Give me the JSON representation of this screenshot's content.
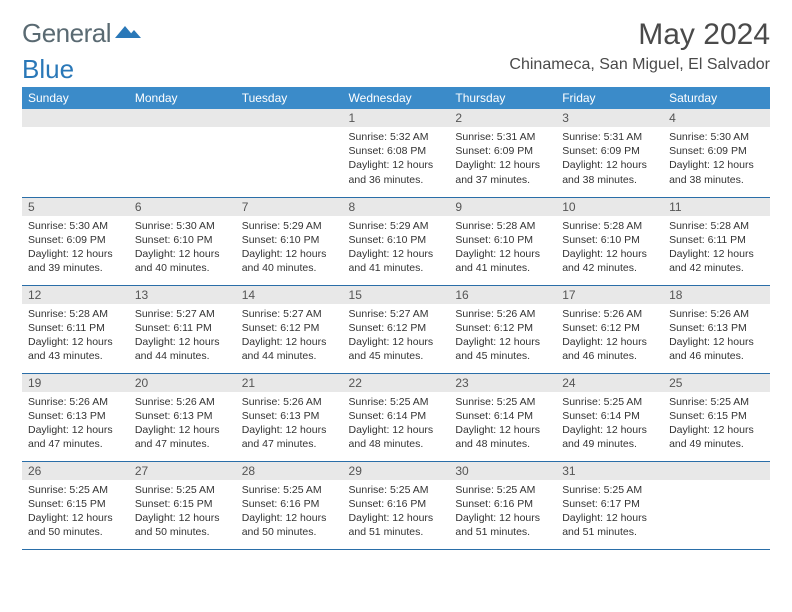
{
  "logo": {
    "word1": "General",
    "word2": "Blue",
    "color1": "#5a6a72",
    "color2": "#2a78b8",
    "shape_color": "#2a78b8"
  },
  "title": "May 2024",
  "location": "Chinameca, San Miguel, El Salvador",
  "colors": {
    "header_bg": "#3b8bc9",
    "header_text": "#ffffff",
    "daynum_bg": "#e8e8e8",
    "border": "#2a6ea8",
    "text": "#333333"
  },
  "daynames": [
    "Sunday",
    "Monday",
    "Tuesday",
    "Wednesday",
    "Thursday",
    "Friday",
    "Saturday"
  ],
  "weeks": [
    [
      null,
      null,
      null,
      {
        "n": 1,
        "sr": "5:32 AM",
        "ss": "6:08 PM",
        "dl": "12 hours and 36 minutes."
      },
      {
        "n": 2,
        "sr": "5:31 AM",
        "ss": "6:09 PM",
        "dl": "12 hours and 37 minutes."
      },
      {
        "n": 3,
        "sr": "5:31 AM",
        "ss": "6:09 PM",
        "dl": "12 hours and 38 minutes."
      },
      {
        "n": 4,
        "sr": "5:30 AM",
        "ss": "6:09 PM",
        "dl": "12 hours and 38 minutes."
      }
    ],
    [
      {
        "n": 5,
        "sr": "5:30 AM",
        "ss": "6:09 PM",
        "dl": "12 hours and 39 minutes."
      },
      {
        "n": 6,
        "sr": "5:30 AM",
        "ss": "6:10 PM",
        "dl": "12 hours and 40 minutes."
      },
      {
        "n": 7,
        "sr": "5:29 AM",
        "ss": "6:10 PM",
        "dl": "12 hours and 40 minutes."
      },
      {
        "n": 8,
        "sr": "5:29 AM",
        "ss": "6:10 PM",
        "dl": "12 hours and 41 minutes."
      },
      {
        "n": 9,
        "sr": "5:28 AM",
        "ss": "6:10 PM",
        "dl": "12 hours and 41 minutes."
      },
      {
        "n": 10,
        "sr": "5:28 AM",
        "ss": "6:10 PM",
        "dl": "12 hours and 42 minutes."
      },
      {
        "n": 11,
        "sr": "5:28 AM",
        "ss": "6:11 PM",
        "dl": "12 hours and 42 minutes."
      }
    ],
    [
      {
        "n": 12,
        "sr": "5:28 AM",
        "ss": "6:11 PM",
        "dl": "12 hours and 43 minutes."
      },
      {
        "n": 13,
        "sr": "5:27 AM",
        "ss": "6:11 PM",
        "dl": "12 hours and 44 minutes."
      },
      {
        "n": 14,
        "sr": "5:27 AM",
        "ss": "6:12 PM",
        "dl": "12 hours and 44 minutes."
      },
      {
        "n": 15,
        "sr": "5:27 AM",
        "ss": "6:12 PM",
        "dl": "12 hours and 45 minutes."
      },
      {
        "n": 16,
        "sr": "5:26 AM",
        "ss": "6:12 PM",
        "dl": "12 hours and 45 minutes."
      },
      {
        "n": 17,
        "sr": "5:26 AM",
        "ss": "6:12 PM",
        "dl": "12 hours and 46 minutes."
      },
      {
        "n": 18,
        "sr": "5:26 AM",
        "ss": "6:13 PM",
        "dl": "12 hours and 46 minutes."
      }
    ],
    [
      {
        "n": 19,
        "sr": "5:26 AM",
        "ss": "6:13 PM",
        "dl": "12 hours and 47 minutes."
      },
      {
        "n": 20,
        "sr": "5:26 AM",
        "ss": "6:13 PM",
        "dl": "12 hours and 47 minutes."
      },
      {
        "n": 21,
        "sr": "5:26 AM",
        "ss": "6:13 PM",
        "dl": "12 hours and 47 minutes."
      },
      {
        "n": 22,
        "sr": "5:25 AM",
        "ss": "6:14 PM",
        "dl": "12 hours and 48 minutes."
      },
      {
        "n": 23,
        "sr": "5:25 AM",
        "ss": "6:14 PM",
        "dl": "12 hours and 48 minutes."
      },
      {
        "n": 24,
        "sr": "5:25 AM",
        "ss": "6:14 PM",
        "dl": "12 hours and 49 minutes."
      },
      {
        "n": 25,
        "sr": "5:25 AM",
        "ss": "6:15 PM",
        "dl": "12 hours and 49 minutes."
      }
    ],
    [
      {
        "n": 26,
        "sr": "5:25 AM",
        "ss": "6:15 PM",
        "dl": "12 hours and 50 minutes."
      },
      {
        "n": 27,
        "sr": "5:25 AM",
        "ss": "6:15 PM",
        "dl": "12 hours and 50 minutes."
      },
      {
        "n": 28,
        "sr": "5:25 AM",
        "ss": "6:16 PM",
        "dl": "12 hours and 50 minutes."
      },
      {
        "n": 29,
        "sr": "5:25 AM",
        "ss": "6:16 PM",
        "dl": "12 hours and 51 minutes."
      },
      {
        "n": 30,
        "sr": "5:25 AM",
        "ss": "6:16 PM",
        "dl": "12 hours and 51 minutes."
      },
      {
        "n": 31,
        "sr": "5:25 AM",
        "ss": "6:17 PM",
        "dl": "12 hours and 51 minutes."
      },
      null
    ]
  ],
  "labels": {
    "sunrise": "Sunrise:",
    "sunset": "Sunset:",
    "daylight": "Daylight:"
  }
}
